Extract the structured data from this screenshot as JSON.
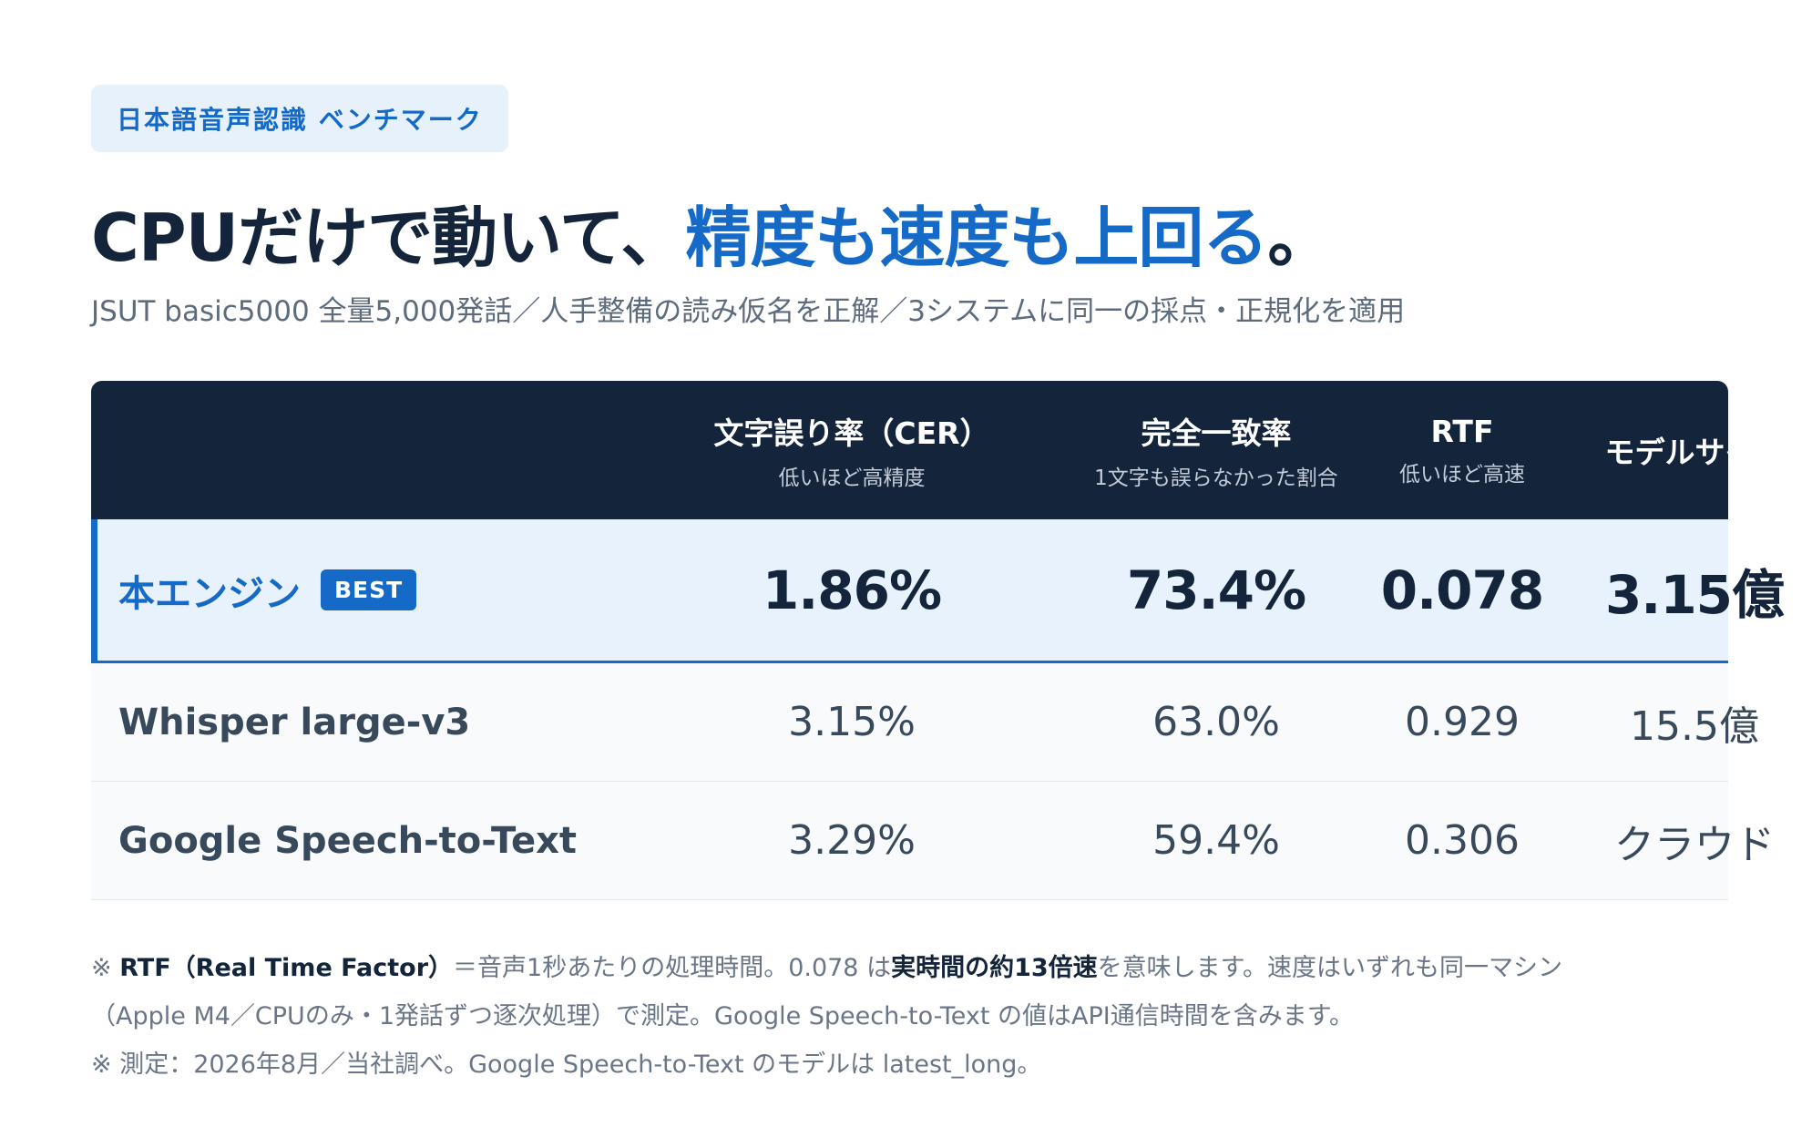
{
  "badge": "日本語音声認識 ベンチマーク",
  "headline": {
    "part1": "CPUだけで動いて、",
    "accent": "精度も速度も上回る",
    "end": "。"
  },
  "subtitle": "JSUT basic5000 全量5,000発話／人手整備の読み仮名を正解／3システムに同一の採点・正規化を適用",
  "table": {
    "columns": [
      {
        "label": "文字誤り率（CER）",
        "sub": "低いほど高精度"
      },
      {
        "label": "完全一致率",
        "sub": "1文字も誤らなかった割合"
      },
      {
        "label": "RTF",
        "sub": "低いほど高速"
      },
      {
        "label": "モデルサイズ",
        "sub": ""
      }
    ],
    "rows": [
      {
        "name": "本エンジン",
        "tag": "BEST",
        "cer": "1.86%",
        "exact": "73.4%",
        "rtf": "0.078",
        "size": "3.15億"
      },
      {
        "name": "Whisper large-v3",
        "cer": "3.15%",
        "exact": "63.0%",
        "rtf": "0.929",
        "size": "15.5億"
      },
      {
        "name": "Google Speech-to-Text",
        "cer": "3.29%",
        "exact": "59.4%",
        "rtf": "0.306",
        "size": "クラウド"
      }
    ]
  },
  "notes": {
    "line1_prefix": "※ ",
    "line1_bold1": "RTF（Real Time Factor）",
    "line1_mid": "＝音声1秒あたりの処理時間。0.078 は",
    "line1_bold2": "実時間の約13倍速",
    "line1_end": "を意味します。速度はいずれも同一マシン",
    "line2": "（Apple M4／CPUのみ・1発話ずつ逐次処理）で測定。Google Speech-to-Text の値はAPI通信時間を含みます。",
    "line3": "※ 測定：2026年8月／当社調べ。Google Speech-to-Text のモデルは latest_long。"
  }
}
